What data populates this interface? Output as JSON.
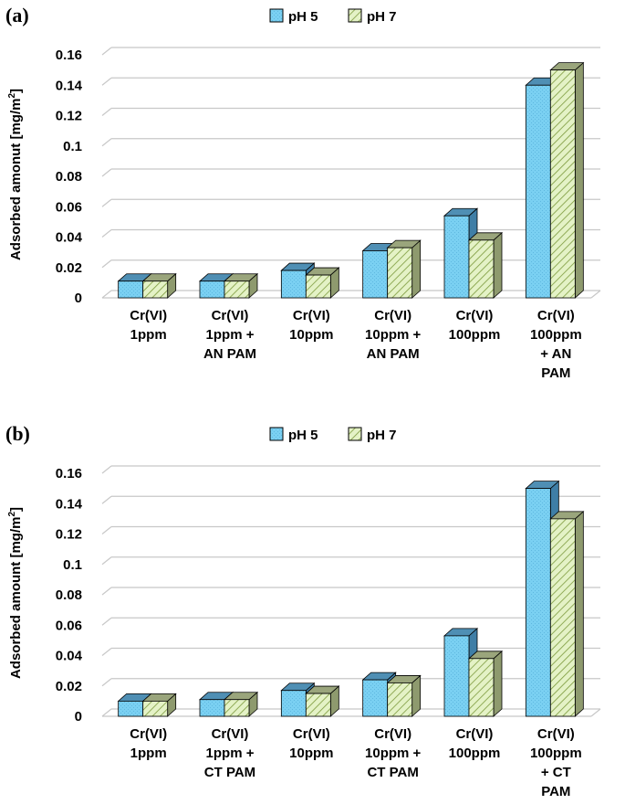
{
  "colors": {
    "ph5_face": "#7ad0f2",
    "ph5_top": "#4f8fb4",
    "ph5_side": "#3f7ea6",
    "ph7_face": "#e4f2c6",
    "ph7_hatch": "#7c9a3c",
    "ph7_top": "#9aa57c",
    "ph7_side": "#8e9a6e",
    "grid": "#c8c8c8"
  },
  "chart_data": [
    {
      "panel": "(a)",
      "type": "bar",
      "ylabel": "Adsorbed amonut [mg/m",
      "ylabel_sup": "2",
      "ylabel_end": "]",
      "ylim": [
        0,
        0.16
      ],
      "yticks": [
        "0",
        "0.02",
        "0.04",
        "0.06",
        "0.08",
        "0.1",
        "0.12",
        "0.14",
        "0.16"
      ],
      "categories": [
        [
          "Cr(VI)",
          "1ppm"
        ],
        [
          "Cr(VI)",
          "1ppm +",
          "AN PAM"
        ],
        [
          "Cr(VI)",
          "10ppm"
        ],
        [
          "Cr(VI)",
          "10ppm +",
          "AN PAM"
        ],
        [
          "Cr(VI)",
          "100ppm"
        ],
        [
          "Cr(VI)",
          "100ppm",
          "+ AN",
          "PAM"
        ]
      ],
      "series": [
        {
          "name": "pH 5",
          "values": [
            0.011,
            0.011,
            0.018,
            0.031,
            0.054,
            0.14
          ]
        },
        {
          "name": "pH 7",
          "values": [
            0.011,
            0.011,
            0.015,
            0.033,
            0.038,
            0.15
          ]
        }
      ],
      "legend_position": "top-center"
    },
    {
      "panel": "(b)",
      "type": "bar",
      "ylabel": "Adsorbed amount [mg/m",
      "ylabel_sup": "2",
      "ylabel_end": "]",
      "ylim": [
        0,
        0.16
      ],
      "yticks": [
        "0",
        "0.02",
        "0.04",
        "0.06",
        "0.08",
        "0.1",
        "0.12",
        "0.14",
        "0.16"
      ],
      "categories": [
        [
          "Cr(VI)",
          "1ppm"
        ],
        [
          "Cr(VI)",
          "1ppm +",
          "CT PAM"
        ],
        [
          "Cr(VI)",
          "10ppm"
        ],
        [
          "Cr(VI)",
          "10ppm +",
          "CT PAM"
        ],
        [
          "Cr(VI)",
          "100ppm"
        ],
        [
          "Cr(VI)",
          "100ppm",
          "+ CT",
          "PAM"
        ]
      ],
      "series": [
        {
          "name": "pH 5",
          "values": [
            0.01,
            0.011,
            0.017,
            0.024,
            0.053,
            0.15
          ]
        },
        {
          "name": "pH 7",
          "values": [
            0.01,
            0.011,
            0.015,
            0.022,
            0.038,
            0.13
          ]
        }
      ],
      "legend_position": "top-center"
    }
  ]
}
